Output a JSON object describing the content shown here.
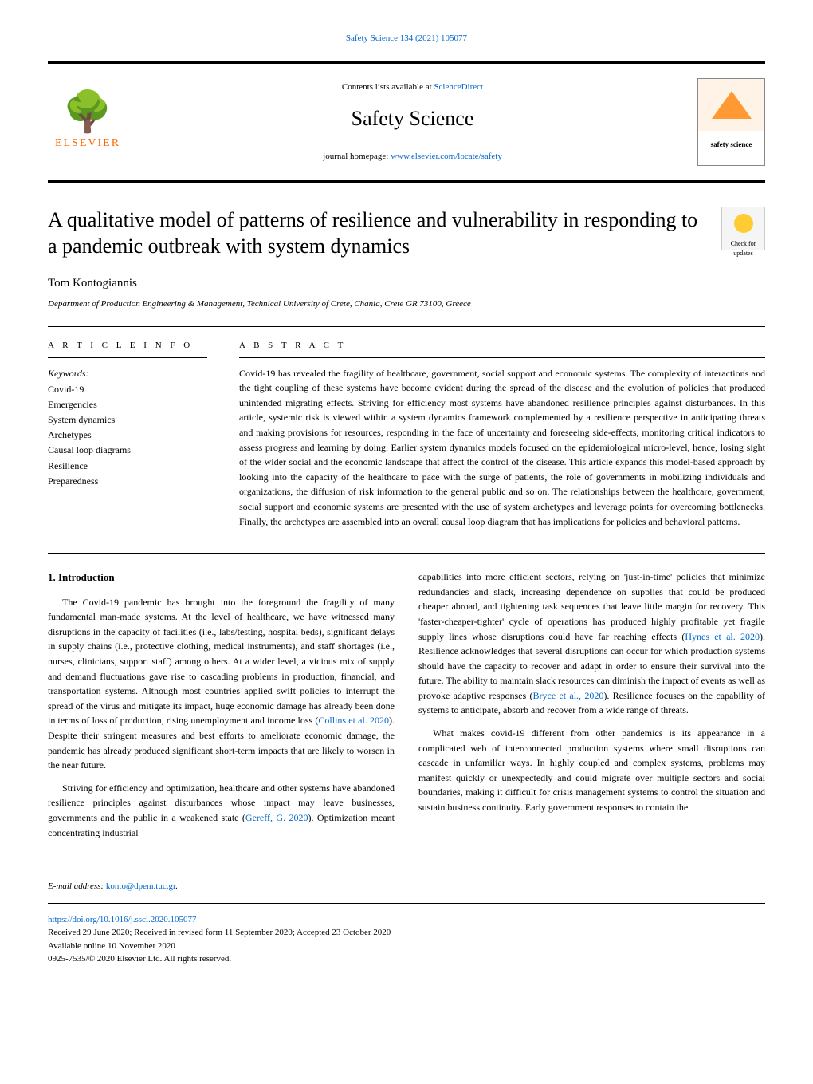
{
  "journal": {
    "citation_header": "Safety Science 134 (2021) 105077",
    "contents_prefix": "Contents lists available at ",
    "contents_link_text": "ScienceDirect",
    "title": "Safety Science",
    "homepage_prefix": "journal homepage: ",
    "homepage_link_text": "www.elsevier.com/locate/safety",
    "publisher_name": "ELSEVIER",
    "cover_label": "safety science"
  },
  "updates_badge": {
    "line1": "Check for",
    "line2": "updates"
  },
  "article": {
    "title": "A qualitative model of patterns of resilience and vulnerability in responding to a pandemic outbreak with system dynamics",
    "author": "Tom Kontogiannis",
    "affiliation": "Department of Production Engineering & Management, Technical University of Crete, Chania, Crete GR 73100, Greece"
  },
  "labels": {
    "article_info": "A R T I C L E   I N F O",
    "abstract": "A B S T R A C T",
    "keywords": "Keywords:"
  },
  "keywords": [
    "Covid-19",
    "Emergencies",
    "System dynamics",
    "Archetypes",
    "Causal loop diagrams",
    "Resilience",
    "Preparedness"
  ],
  "abstract_text": "Covid-19 has revealed the fragility of healthcare, government, social support and economic systems. The complexity of interactions and the tight coupling of these systems have become evident during the spread of the disease and the evolution of policies that produced unintended migrating effects. Striving for efficiency most systems have abandoned resilience principles against disturbances. In this article, systemic risk is viewed within a system dynamics framework complemented by a resilience perspective in anticipating threats and making provisions for resources, responding in the face of uncertainty and foreseeing side-effects, monitoring critical indicators to assess progress and learning by doing. Earlier system dynamics models focused on the epidemiological micro-level, hence, losing sight of the wider social and the economic landscape that affect the control of the disease. This article expands this model-based approach by looking into the capacity of the healthcare to pace with the surge of patients, the role of governments in mobilizing individuals and organizations, the diffusion of risk information to the general public and so on. The relationships between the healthcare, government, social support and economic systems are presented with the use of system archetypes and leverage points for overcoming bottlenecks. Finally, the archetypes are assembled into an overall causal loop diagram that has implications for policies and behavioral patterns.",
  "body": {
    "section_heading": "1.  Introduction",
    "col1": {
      "p1_pre": "The Covid-19 pandemic has brought into the foreground the fragility of many fundamental man-made systems. At the level of healthcare, we have witnessed many disruptions in the capacity of facilities (i.e., labs/testing, hospital beds), significant delays in supply chains (i.e., protective clothing, medical instruments), and staff shortages (i.e., nurses, clinicians, support staff) among others. At a wider level, a vicious mix of supply and demand fluctuations gave rise to cascading problems in production, financial, and transportation systems. Although most countries applied swift policies to interrupt the spread of the virus and mitigate its impact, huge economic damage has already been done in terms of loss of production, rising unemployment and income loss (",
      "p1_cite": "Collins et al. 2020",
      "p1_post": "). Despite their stringent measures and best efforts to ameliorate economic damage, the pandemic has already produced significant short-term impacts that are likely to worsen in the near future.",
      "p2_pre": "Striving for efficiency and optimization, healthcare and other systems have abandoned resilience principles against disturbances whose impact may leave businesses, governments and the public in a weakened state (",
      "p2_cite": "Gereff, G. 2020",
      "p2_post": "). Optimization meant concentrating industrial"
    },
    "col2": {
      "p1_pre": "capabilities into more efficient sectors, relying on 'just-in-time' policies that minimize redundancies and slack, increasing dependence on supplies that could be produced cheaper abroad, and tightening task sequences that leave little margin for recovery. This 'faster-cheaper-tighter' cycle of operations has produced highly profitable yet fragile supply lines whose disruptions could have far reaching effects (",
      "p1_cite": "Hynes et al. 2020",
      "p1_mid": "). Resilience acknowledges that several disruptions can occur for which production systems should have the capacity to recover and adapt in order to ensure their survival into the future. The ability to maintain slack resources can diminish the impact of events as well as provoke adaptive responses (",
      "p1_cite2": "Bryce et al., 2020",
      "p1_post": "). Resilience focuses on the capability of systems to anticipate, absorb and recover from a wide range of threats.",
      "p2": "What makes covid-19 different from other pandemics is its appearance in a complicated web of interconnected production systems where small disruptions can cascade in unfamiliar ways. In highly coupled and complex systems, problems may manifest quickly or unexpectedly and could migrate over multiple sectors and social boundaries, making it difficult for crisis management systems to control the situation and sustain business continuity. Early government responses to contain the"
    }
  },
  "footer": {
    "email_label": "E-mail address: ",
    "email": "konto@dpem.tuc.gr",
    "doi": "https://doi.org/10.1016/j.ssci.2020.105077",
    "received": "Received 29 June 2020; Received in revised form 11 September 2020; Accepted 23 October 2020",
    "available": "Available online 10 November 2020",
    "copyright": "0925-7535/© 2020 Elsevier Ltd. All rights reserved."
  },
  "colors": {
    "link": "#0066cc",
    "publisher": "#ff6600",
    "badge_circle": "#ffcc33"
  }
}
